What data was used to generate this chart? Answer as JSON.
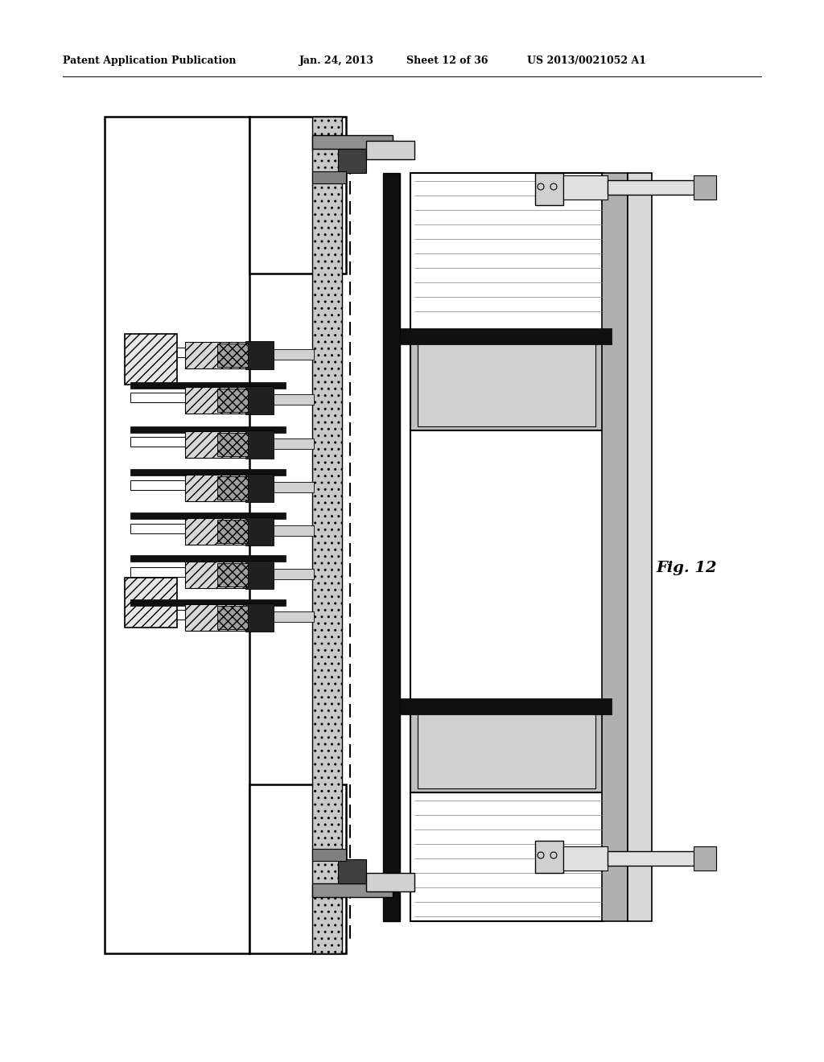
{
  "bg_color": "#ffffff",
  "header_text": "Patent Application Publication",
  "header_date": "Jan. 24, 2013",
  "header_sheet": "Sheet 12 of 36",
  "header_patent": "US 2013/0021052 A1",
  "fig_label": "Fig. 12",
  "fig_width": 10.24,
  "fig_height": 13.2
}
